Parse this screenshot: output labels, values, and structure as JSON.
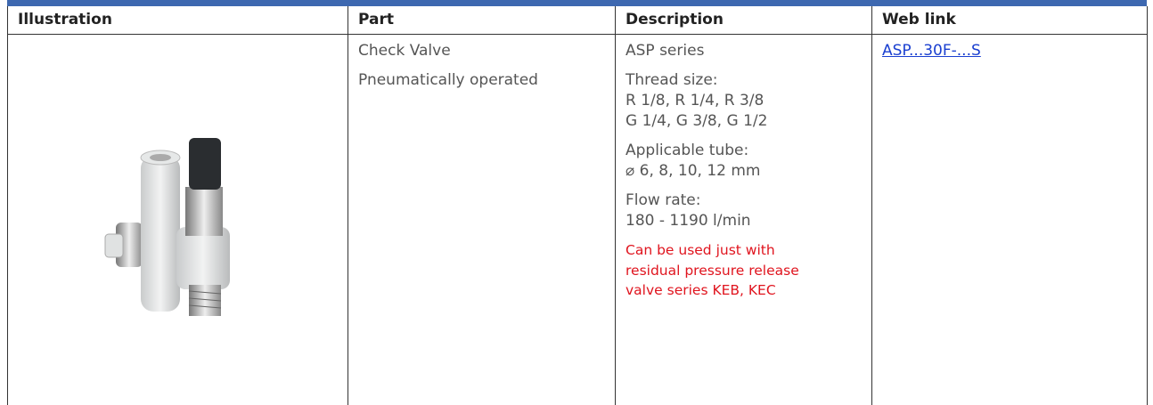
{
  "table": {
    "headers": [
      "Illustration",
      "Part",
      "Description",
      "Web link"
    ],
    "rows": [
      {
        "part": [
          "Check Valve",
          "Pneumatically operated"
        ],
        "description": [
          [
            "ASP series"
          ],
          [
            "Thread size:",
            "R 1/8, R 1/4, R 3/8",
            "G 1/4, G 3/8, G 1/2"
          ],
          [
            "Applicable tube:",
            "⌀ 6, 8, 10, 12 mm"
          ],
          [
            "Flow rate:",
            "180 - 1190 l/min"
          ]
        ],
        "note": [
          "Can be used just with",
          "residual pressure release",
          "valve series KEB, KEC"
        ],
        "link": "ASP...30F-...S"
      }
    ]
  }
}
